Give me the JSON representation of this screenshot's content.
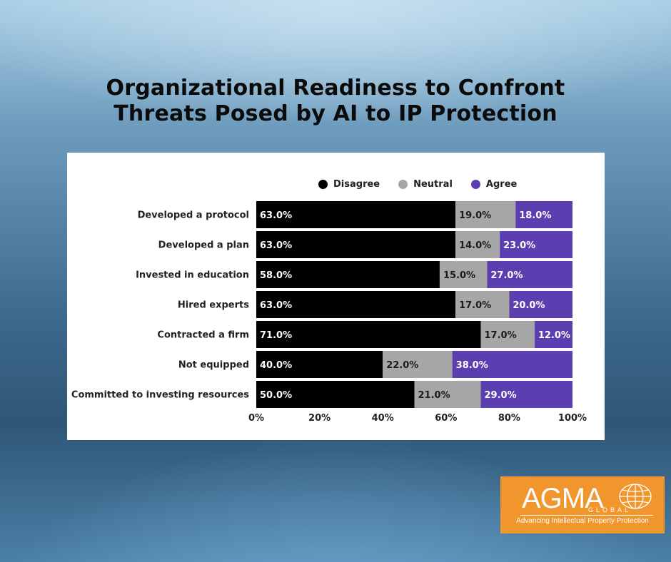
{
  "title_line1": "Organizational Readiness to Confront",
  "title_line2": "Threats Posed by AI to IP Protection",
  "legend": [
    {
      "label": "Disagree",
      "color": "#000000"
    },
    {
      "label": "Neutral",
      "color": "#a6a6a6"
    },
    {
      "label": "Agree",
      "color": "#5b3fb0"
    }
  ],
  "chart_data": {
    "type": "bar",
    "orientation": "horizontal",
    "stacked": true,
    "categories": [
      "Developed a protocol",
      "Developed a plan",
      "Invested in education",
      "Hired experts",
      "Contracted a firm",
      "Not equipped",
      "Committed to investing resources"
    ],
    "series": [
      {
        "name": "Disagree",
        "color": "#000000",
        "values": [
          63.0,
          63.0,
          58.0,
          63.0,
          71.0,
          40.0,
          50.0
        ]
      },
      {
        "name": "Neutral",
        "color": "#a6a6a6",
        "values": [
          19.0,
          14.0,
          15.0,
          17.0,
          17.0,
          22.0,
          21.0
        ]
      },
      {
        "name": "Agree",
        "color": "#5b3fb0",
        "values": [
          18.0,
          23.0,
          27.0,
          20.0,
          12.0,
          38.0,
          29.0
        ]
      }
    ],
    "xlim": [
      0,
      100
    ],
    "xticks": [
      "0%",
      "20%",
      "40%",
      "60%",
      "80%",
      "100%"
    ],
    "legend_position": "top",
    "grid": false
  },
  "logo": {
    "main": "AGMA",
    "sub": "GLOBAL",
    "tagline": "Advancing Intellectual Property Protection"
  }
}
